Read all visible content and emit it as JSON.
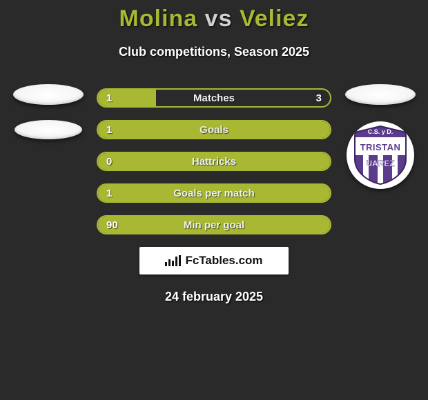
{
  "header": {
    "player1": "Molina",
    "vs": "vs",
    "player2": "Veliez",
    "subtitle": "Club competitions, Season 2025",
    "title_color": "#a8b833"
  },
  "club_badge": {
    "top_text": "C.S. y D.",
    "middle_text": "TRISTAN",
    "bottom_text": "UAREZ",
    "main_color": "#5b3b8c",
    "stripe_color": "#ffffff"
  },
  "bars": {
    "border_color": "#a8b833",
    "fill_color": "#a8b833",
    "items": [
      {
        "label": "Matches",
        "left": "1",
        "right": "3",
        "fill_percent": 25
      },
      {
        "label": "Goals",
        "left": "1",
        "right": "",
        "fill_percent": 100
      },
      {
        "label": "Hattricks",
        "left": "0",
        "right": "",
        "fill_percent": 100
      },
      {
        "label": "Goals per match",
        "left": "1",
        "right": "",
        "fill_percent": 100
      },
      {
        "label": "Min per goal",
        "left": "90",
        "right": "",
        "fill_percent": 100
      }
    ]
  },
  "attribution": {
    "text": "FcTables.com"
  },
  "date": "24 february 2025",
  "colors": {
    "background": "#2a2a2a",
    "text": "#ffffff"
  }
}
